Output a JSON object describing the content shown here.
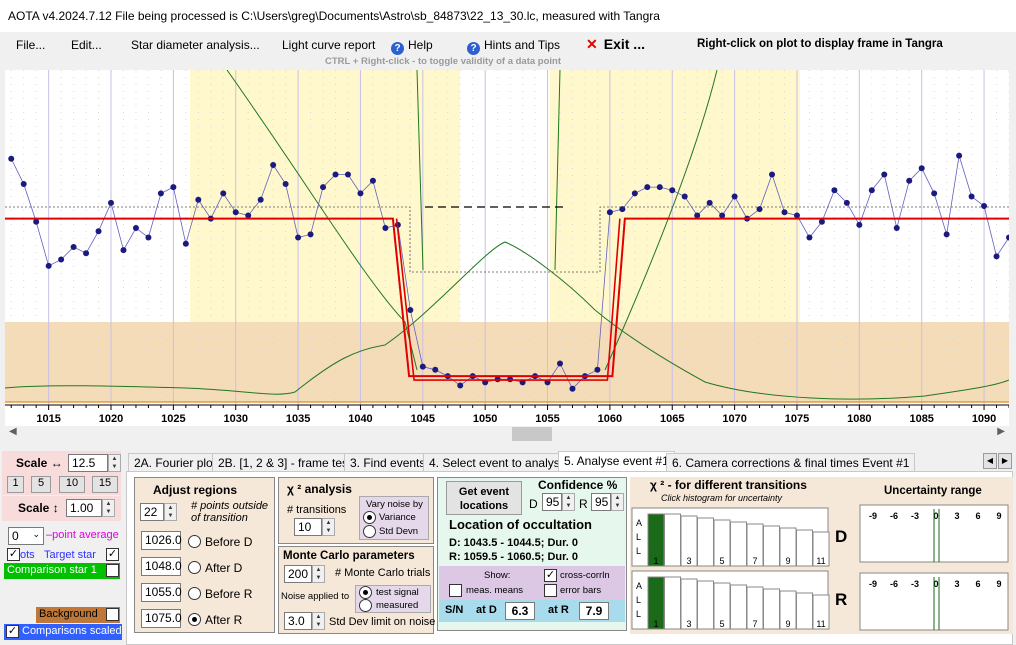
{
  "window": {
    "title": "AOTA v4.2024.7.12    File being processed is C:\\Users\\greg\\Documents\\Astro\\sb_84873\\22_13_30.lc, measured with Tangra"
  },
  "menu": {
    "file": "File...",
    "edit": "Edit...",
    "star_diameter": "Star diameter analysis...",
    "light_curve": "Light curve report",
    "help": "Help",
    "hints": "Hints and Tips",
    "exit": "Exit ...",
    "right_click_note": "Right-click on plot to display frame in Tangra",
    "ctrl_hint": "CTRL + Right-click  -  to toggle validity of a data point"
  },
  "chart_data": {
    "type": "line",
    "xlim": [
      1011.5,
      1092
    ],
    "x_ticks": [
      1015,
      1020,
      1025,
      1030,
      1035,
      1040,
      1045,
      1050,
      1055,
      1060,
      1065,
      1070,
      1075,
      1080,
      1085,
      1090
    ],
    "ylim": [
      0,
      10
    ],
    "grid": "dotted vertical",
    "series": [
      {
        "values": [
          [
            1012,
            7.5
          ],
          [
            1013,
            6.7
          ],
          [
            1014,
            5.5
          ],
          [
            1015,
            4.1
          ],
          [
            1016,
            4.3
          ],
          [
            1017,
            4.7
          ],
          [
            1018,
            4.5
          ],
          [
            1019,
            5.2
          ],
          [
            1020,
            6.1
          ],
          [
            1021,
            4.6
          ],
          [
            1022,
            5.3
          ],
          [
            1023,
            5.0
          ],
          [
            1024,
            6.4
          ],
          [
            1025,
            6.6
          ],
          [
            1026,
            4.8
          ],
          [
            1027,
            6.2
          ],
          [
            1028,
            5.6
          ],
          [
            1029,
            6.4
          ],
          [
            1030,
            5.8
          ],
          [
            1031,
            5.7
          ],
          [
            1032,
            6.2
          ],
          [
            1033,
            7.3
          ],
          [
            1034,
            6.7
          ],
          [
            1035,
            5.0
          ],
          [
            1036,
            5.1
          ],
          [
            1037,
            6.6
          ],
          [
            1038,
            7.0
          ],
          [
            1039,
            7.0
          ],
          [
            1040,
            6.4
          ],
          [
            1041,
            6.8
          ],
          [
            1042,
            5.3
          ],
          [
            1043,
            5.4
          ],
          [
            1044,
            2.7
          ],
          [
            1045,
            0.9
          ],
          [
            1046,
            0.8
          ],
          [
            1047,
            0.6
          ],
          [
            1048,
            0.3
          ],
          [
            1049,
            0.6
          ],
          [
            1050,
            0.4
          ],
          [
            1051,
            0.5
          ],
          [
            1052,
            0.5
          ],
          [
            1053,
            0.4
          ],
          [
            1054,
            0.6
          ],
          [
            1055,
            0.4
          ],
          [
            1056,
            1.0
          ],
          [
            1057,
            0.2
          ],
          [
            1058,
            0.6
          ],
          [
            1059,
            0.8
          ],
          [
            1060,
            5.8
          ],
          [
            1061,
            5.9
          ],
          [
            1062,
            6.4
          ],
          [
            1063,
            6.6
          ],
          [
            1064,
            6.6
          ],
          [
            1065,
            6.5
          ],
          [
            1066,
            6.3
          ],
          [
            1067,
            5.7
          ],
          [
            1068,
            6.1
          ],
          [
            1069,
            5.7
          ],
          [
            1070,
            6.3
          ],
          [
            1071,
            5.6
          ],
          [
            1072,
            5.9
          ],
          [
            1073,
            7.0
          ],
          [
            1074,
            5.8
          ],
          [
            1075,
            5.7
          ],
          [
            1076,
            5.0
          ],
          [
            1077,
            5.5
          ],
          [
            1078,
            6.5
          ],
          [
            1079,
            6.1
          ],
          [
            1080,
            5.4
          ],
          [
            1081,
            6.5
          ],
          [
            1082,
            7.0
          ],
          [
            1083,
            5.3
          ],
          [
            1084,
            6.8
          ],
          [
            1085,
            7.2
          ],
          [
            1086,
            6.4
          ],
          [
            1087,
            5.1
          ],
          [
            1088,
            7.6
          ],
          [
            1089,
            6.3
          ],
          [
            1090,
            6.0
          ],
          [
            1091,
            4.4
          ],
          [
            1092,
            5.0
          ]
        ]
      }
    ],
    "fit_levels": {
      "baseline": 5.6,
      "event": 0.6
    }
  },
  "tabs": [
    "2A. Fourier plot",
    "2B. [1, 2 & 3] - frame test",
    "3. Find events",
    "4. Select event to analyse",
    "5. Analyse event #1",
    "6. Camera corrections & final times Event #1"
  ],
  "left_panel": {
    "scale_h_label": "Scale ↔",
    "scale_h_value": "12.5",
    "scale_buttons": [
      "1",
      "5",
      "10",
      "15"
    ],
    "scale_v_label": "Scale ↕",
    "scale_v_value": "1.00",
    "point_avg_value": "0",
    "point_avg_label": "point average",
    "target_prefix": "ots",
    "target_label": "Target star",
    "comparison_label": "Comparison star 1",
    "background_label": "Background",
    "comparisons_scaled_label": "Comparisons scaled",
    "colors": {
      "comparison": "#00c000",
      "background": "#c07838",
      "comparisons_scaled": "#3060ff",
      "target_label": "#3030ff",
      "point_avg": "#e000e0"
    }
  },
  "adjust": {
    "title": "Adjust regions",
    "points_value": "22",
    "points_label_1": "# points outside",
    "points_label_2": "of transition",
    "before_d_value": "1026.0",
    "before_d": "Before D",
    "after_d_value": "1048.0",
    "after_d": "After D",
    "before_r_value": "1055.0",
    "before_r": "Before R",
    "after_r_value": "1075.0",
    "after_r": "After R"
  },
  "chi2": {
    "title": "χ ² analysis",
    "transitions_label": "# transitions",
    "transitions_value": "10",
    "vary_noise": "Vary noise by",
    "variance": "Variance",
    "std_devn": "Std Devn"
  },
  "monte": {
    "title": "Monte Carlo parameters",
    "trials_value": "200",
    "trials_label": "# Monte Carlo trials",
    "noise_applied": "Noise applied to",
    "test_signal": "test signal",
    "measured": "measured",
    "std_value": "3.0",
    "std_label": "Std Dev limit on noise"
  },
  "event": {
    "get_locations_1": "Get event",
    "get_locations_2": "locations",
    "confidence": "Confidence %",
    "d_label": "D",
    "d_value": "95",
    "r_label": "R",
    "r_value": "95",
    "location_title": "Location of occultation",
    "d_line": "D: 1043.5 - 1044.5; Dur. 0",
    "r_line": "R: 1059.5 - 1060.5; Dur. 0",
    "show": "Show:",
    "cross_corr": "cross-corrln",
    "meas_means": "meas. means",
    "error_bars": "error bars",
    "sn": "S/N",
    "at_d": "at D",
    "sn_d": "6.3",
    "at_r": "at R",
    "sn_r": "7.9"
  },
  "chi2_hist": {
    "title": "χ ² - for different transitions",
    "subtitle": "Click histogram for uncertainty",
    "axis_letters": [
      "A",
      "L",
      "L"
    ],
    "ticks": [
      "1",
      "3",
      "5",
      "7",
      "9",
      "11"
    ],
    "d_label": "D",
    "r_label": "R"
  },
  "uncertainty": {
    "title": "Uncertainty range",
    "ticks": [
      "-9",
      "-6",
      "-3",
      "0",
      "3",
      "6",
      "9"
    ]
  }
}
